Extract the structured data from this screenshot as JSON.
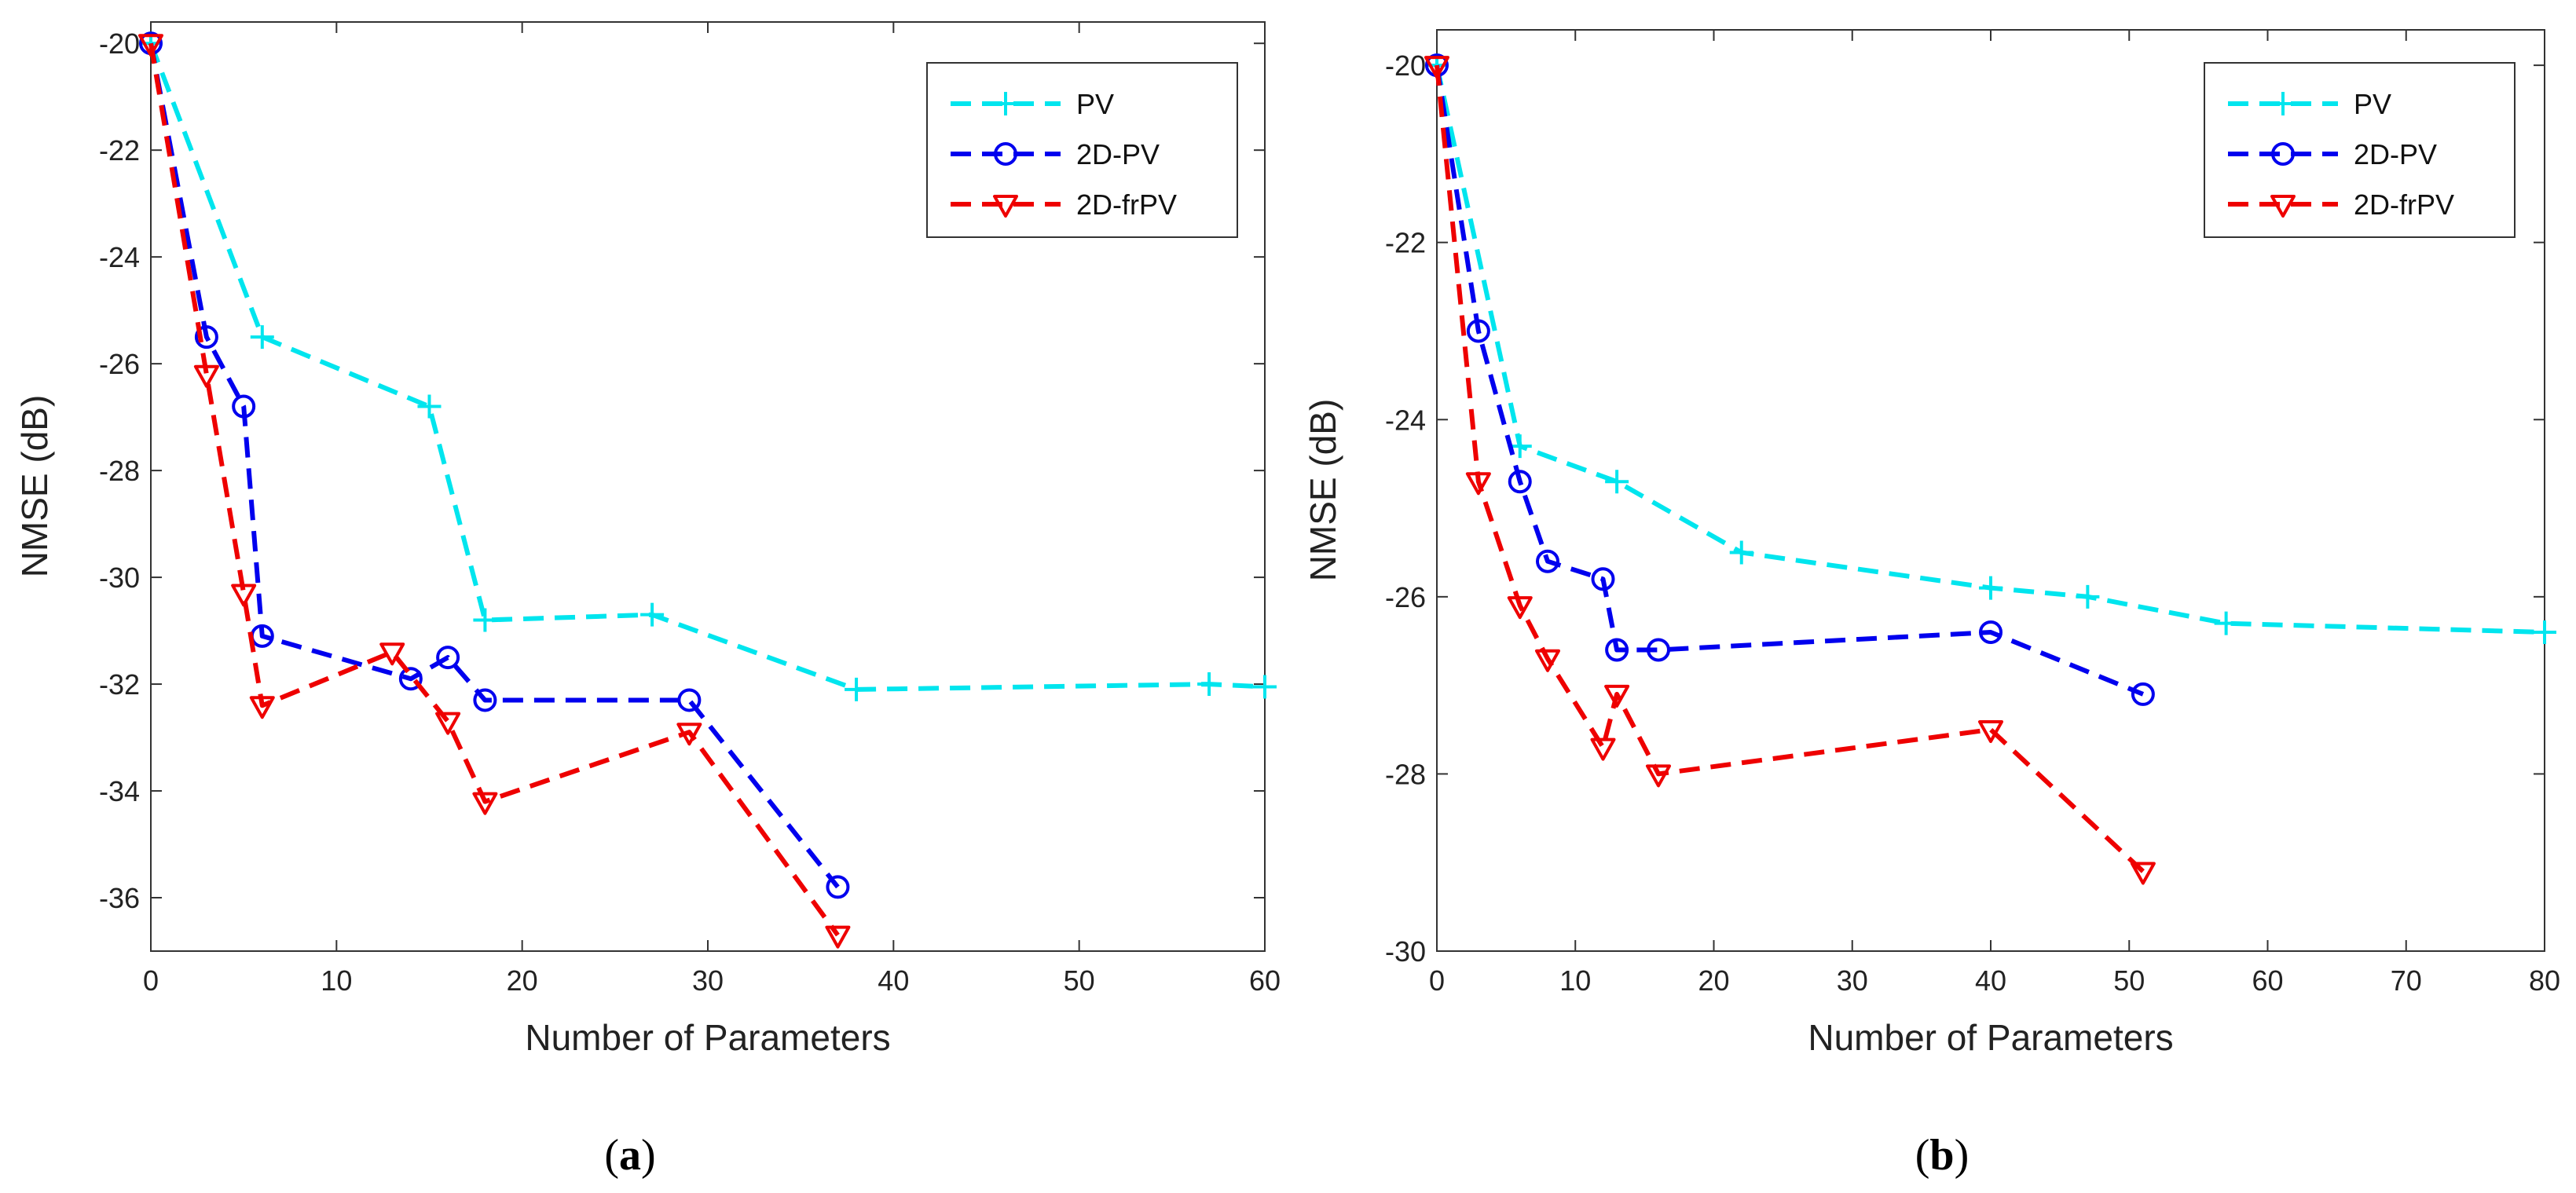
{
  "chart_data": [
    {
      "type": "line",
      "panel": "a",
      "caption_prefix": "(",
      "caption_letter": "a",
      "caption_suffix": ")",
      "xlabel": "Number of Parameters",
      "ylabel": "NMSE (dB)",
      "xlim": [
        0,
        60
      ],
      "ylim": [
        -37,
        -19.6
      ],
      "xticks": [
        0,
        10,
        20,
        30,
        40,
        50,
        60
      ],
      "yticks": [
        -20,
        -22,
        -24,
        -26,
        -28,
        -30,
        -32,
        -34,
        -36
      ],
      "legend_position": "top-right",
      "series": [
        {
          "name": "PV",
          "color": "#00e5ee",
          "marker": "plus",
          "points": [
            [
              0,
              -20
            ],
            [
              6,
              -25.5
            ],
            [
              15,
              -26.8
            ],
            [
              18,
              -30.8
            ],
            [
              27,
              -30.7
            ],
            [
              38,
              -32.1
            ],
            [
              57,
              -32
            ],
            [
              60,
              -32.05
            ]
          ]
        },
        {
          "name": "2D-PV",
          "color": "#0000ee",
          "marker": "circle",
          "points": [
            [
              0,
              -20
            ],
            [
              3,
              -25.5
            ],
            [
              5,
              -26.8
            ],
            [
              6,
              -31.1
            ],
            [
              14,
              -31.9
            ],
            [
              16,
              -31.5
            ],
            [
              18,
              -32.3
            ],
            [
              29,
              -32.3
            ],
            [
              37,
              -35.8
            ]
          ]
        },
        {
          "name": "2D-frPV",
          "color": "#ee0000",
          "marker": "triangle",
          "points": [
            [
              0,
              -20
            ],
            [
              3,
              -26.2
            ],
            [
              5,
              -30.3
            ],
            [
              6,
              -32.4
            ],
            [
              13,
              -31.4
            ],
            [
              16,
              -32.7
            ],
            [
              18,
              -34.2
            ],
            [
              29,
              -32.9
            ],
            [
              37,
              -36.7
            ]
          ]
        }
      ]
    },
    {
      "type": "line",
      "panel": "b",
      "caption_prefix": "(",
      "caption_letter": "b",
      "caption_suffix": ")",
      "xlabel": "Number of Parameters",
      "ylabel": "NMSE (dB)",
      "xlim": [
        0,
        80
      ],
      "ylim": [
        -30,
        -19.6
      ],
      "xticks": [
        0,
        10,
        20,
        30,
        40,
        50,
        60,
        70,
        80
      ],
      "yticks": [
        -20,
        -22,
        -24,
        -26,
        -28,
        -30
      ],
      "legend_position": "top-right",
      "series": [
        {
          "name": "PV",
          "color": "#00e5ee",
          "marker": "plus",
          "points": [
            [
              0,
              -20
            ],
            [
              6,
              -24.3
            ],
            [
              13,
              -24.7
            ],
            [
              22,
              -25.5
            ],
            [
              40,
              -25.9
            ],
            [
              47,
              -26.0
            ],
            [
              57,
              -26.3
            ],
            [
              80,
              -26.4
            ]
          ]
        },
        {
          "name": "2D-PV",
          "color": "#0000ee",
          "marker": "circle",
          "points": [
            [
              0,
              -20
            ],
            [
              3,
              -23
            ],
            [
              6,
              -24.7
            ],
            [
              8,
              -25.6
            ],
            [
              12,
              -25.8
            ],
            [
              13,
              -26.6
            ],
            [
              16,
              -26.6
            ],
            [
              40,
              -26.4
            ],
            [
              51,
              -27.1
            ]
          ]
        },
        {
          "name": "2D-frPV",
          "color": "#ee0000",
          "marker": "triangle",
          "points": [
            [
              0,
              -20
            ],
            [
              3,
              -24.7
            ],
            [
              6,
              -26.1
            ],
            [
              8,
              -26.7
            ],
            [
              12,
              -27.7
            ],
            [
              13,
              -27.1
            ],
            [
              16,
              -28.0
            ],
            [
              40,
              -27.5
            ],
            [
              51,
              -29.1
            ]
          ]
        }
      ]
    }
  ]
}
